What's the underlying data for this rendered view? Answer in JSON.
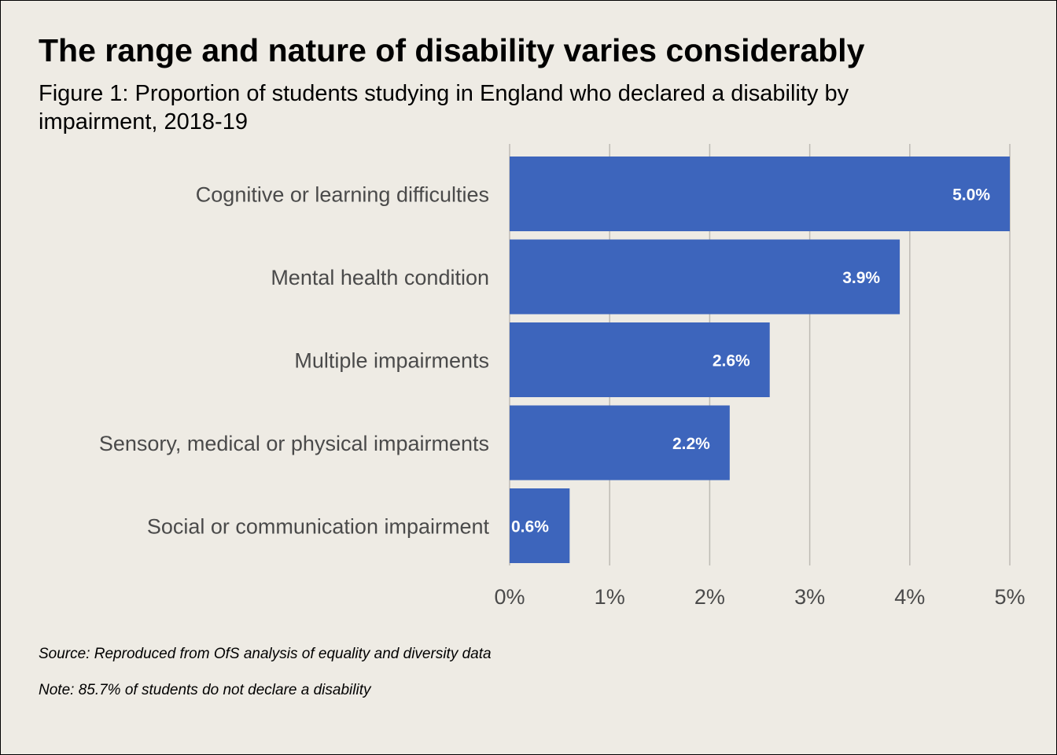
{
  "colors": {
    "bar": "#3d65bc",
    "background": "#eeebe4",
    "gridline": "#bdbab4",
    "label_text": "#4a4a4a"
  },
  "chart_data": {
    "type": "bar",
    "orientation": "horizontal",
    "title": "The range and nature of disability varies considerably",
    "subtitle": "Figure 1: Proportion of students studying in England who declared a disability by impairment, 2018-19",
    "categories": [
      "Cognitive or learning difficulties",
      "Mental health condition",
      "Multiple impairments",
      "Sensory, medical or physical impairments",
      "Social or communication impairment"
    ],
    "values": [
      5.0,
      3.9,
      2.6,
      2.2,
      0.6
    ],
    "value_labels": [
      "5.0%",
      "3.9%",
      "2.6%",
      "2.2%",
      "0.6%"
    ],
    "xlim": [
      0,
      5
    ],
    "xticks": [
      0,
      1,
      2,
      3,
      4,
      5
    ],
    "xtick_labels": [
      "0%",
      "1%",
      "2%",
      "3%",
      "4%",
      "5%"
    ],
    "xlabel": "",
    "ylabel": "",
    "grid": "vertical",
    "legend": "none"
  },
  "footer": {
    "source": "Source: Reproduced from OfS analysis of equality and diversity data",
    "note": "Note: 85.7% of students do not declare a disability"
  }
}
